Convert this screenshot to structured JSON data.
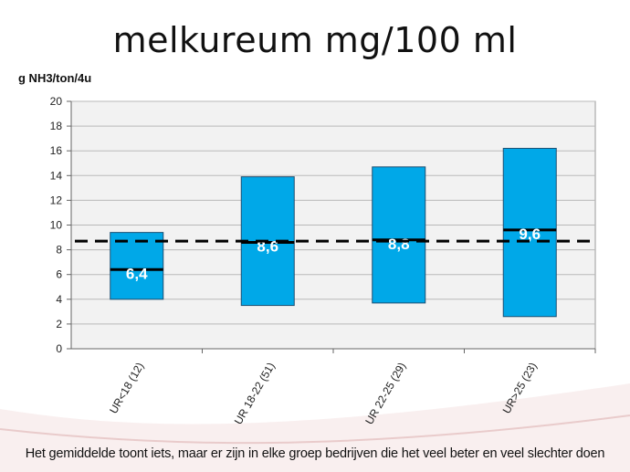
{
  "slide": {
    "title": "melkureum mg/100 ml",
    "unit_label": "g NH3/ton/4u",
    "caption": "Het gemiddelde toont iets, maar er zijn in elke groep bedrijven die het veel beter en veel slechter doen"
  },
  "colors": {
    "box_fill": "#00a8e8",
    "box_stroke": "#1c4f72",
    "mean_line": "#000000",
    "plot_bg": "#f2f2f2",
    "grid": "#b9b9b9",
    "swoosh": "#e8c9c9"
  },
  "chart_data": {
    "type": "bar",
    "subtype": "floating-range",
    "categories": [
      "UR<18 (12)",
      "UR 18-22 (51)",
      "UR 22-25 (29)",
      "UR>25 (23)"
    ],
    "series": [
      {
        "low": [
          4.0,
          3.5,
          3.7,
          2.6
        ],
        "high": [
          9.4,
          13.9,
          14.7,
          16.2
        ],
        "mean": [
          6.4,
          8.6,
          8.8,
          9.6
        ]
      }
    ],
    "mean_labels": [
      "6,4",
      "8,6",
      "8,8",
      "9,6"
    ],
    "overall_mean": 8.7,
    "yticks": [
      0,
      2,
      4,
      6,
      8,
      10,
      12,
      14,
      16,
      18,
      20
    ],
    "ylim": [
      0,
      20
    ],
    "grid": true,
    "legend": "none"
  }
}
